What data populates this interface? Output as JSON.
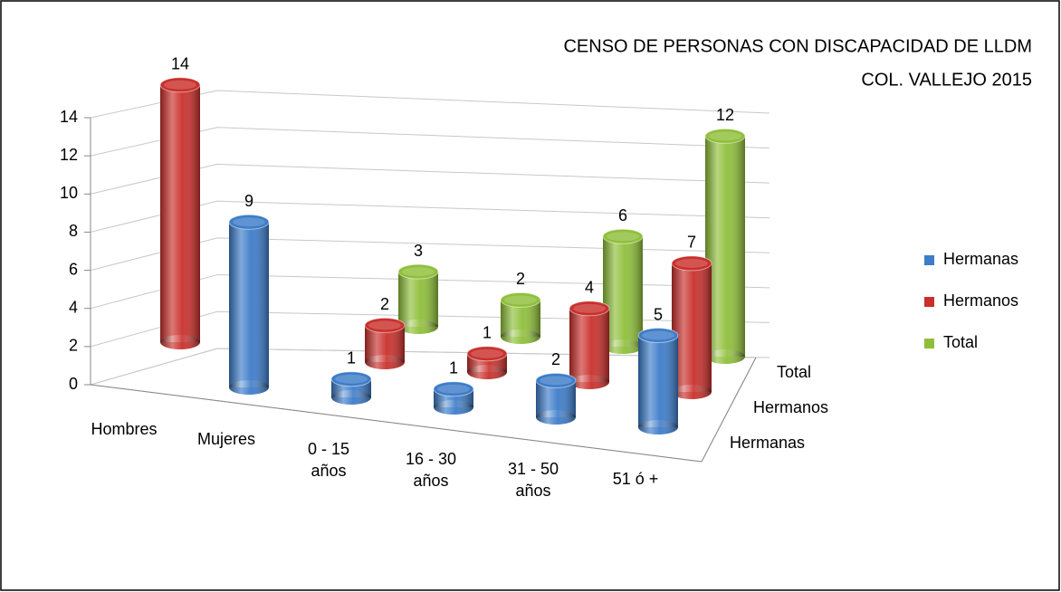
{
  "chart_data": {
    "type": "bar3d",
    "title": "CENSO DE PERSONAS CON DISCAPACIDAD DE LLDM",
    "subtitle": "COL. VALLEJO 2015",
    "categories": [
      "Hombres",
      "Mujeres",
      "0 - 15 años",
      "16 - 30 años",
      "31 - 50 años",
      "51 ó +"
    ],
    "series": [
      {
        "name": "Hermanas",
        "color": "#3d7cc9",
        "values": [
          null,
          9,
          1,
          1,
          2,
          5
        ]
      },
      {
        "name": "Hermanos",
        "color": "#c9302c",
        "values": [
          14,
          null,
          2,
          1,
          4,
          7
        ]
      },
      {
        "name": "Total",
        "color": "#8fbf3a",
        "values": [
          null,
          null,
          3,
          2,
          6,
          12
        ]
      }
    ],
    "ylim": [
      0,
      14
    ],
    "yticks": [
      0,
      2,
      4,
      6,
      8,
      10,
      12,
      14
    ],
    "grid": true,
    "legend": "right"
  }
}
